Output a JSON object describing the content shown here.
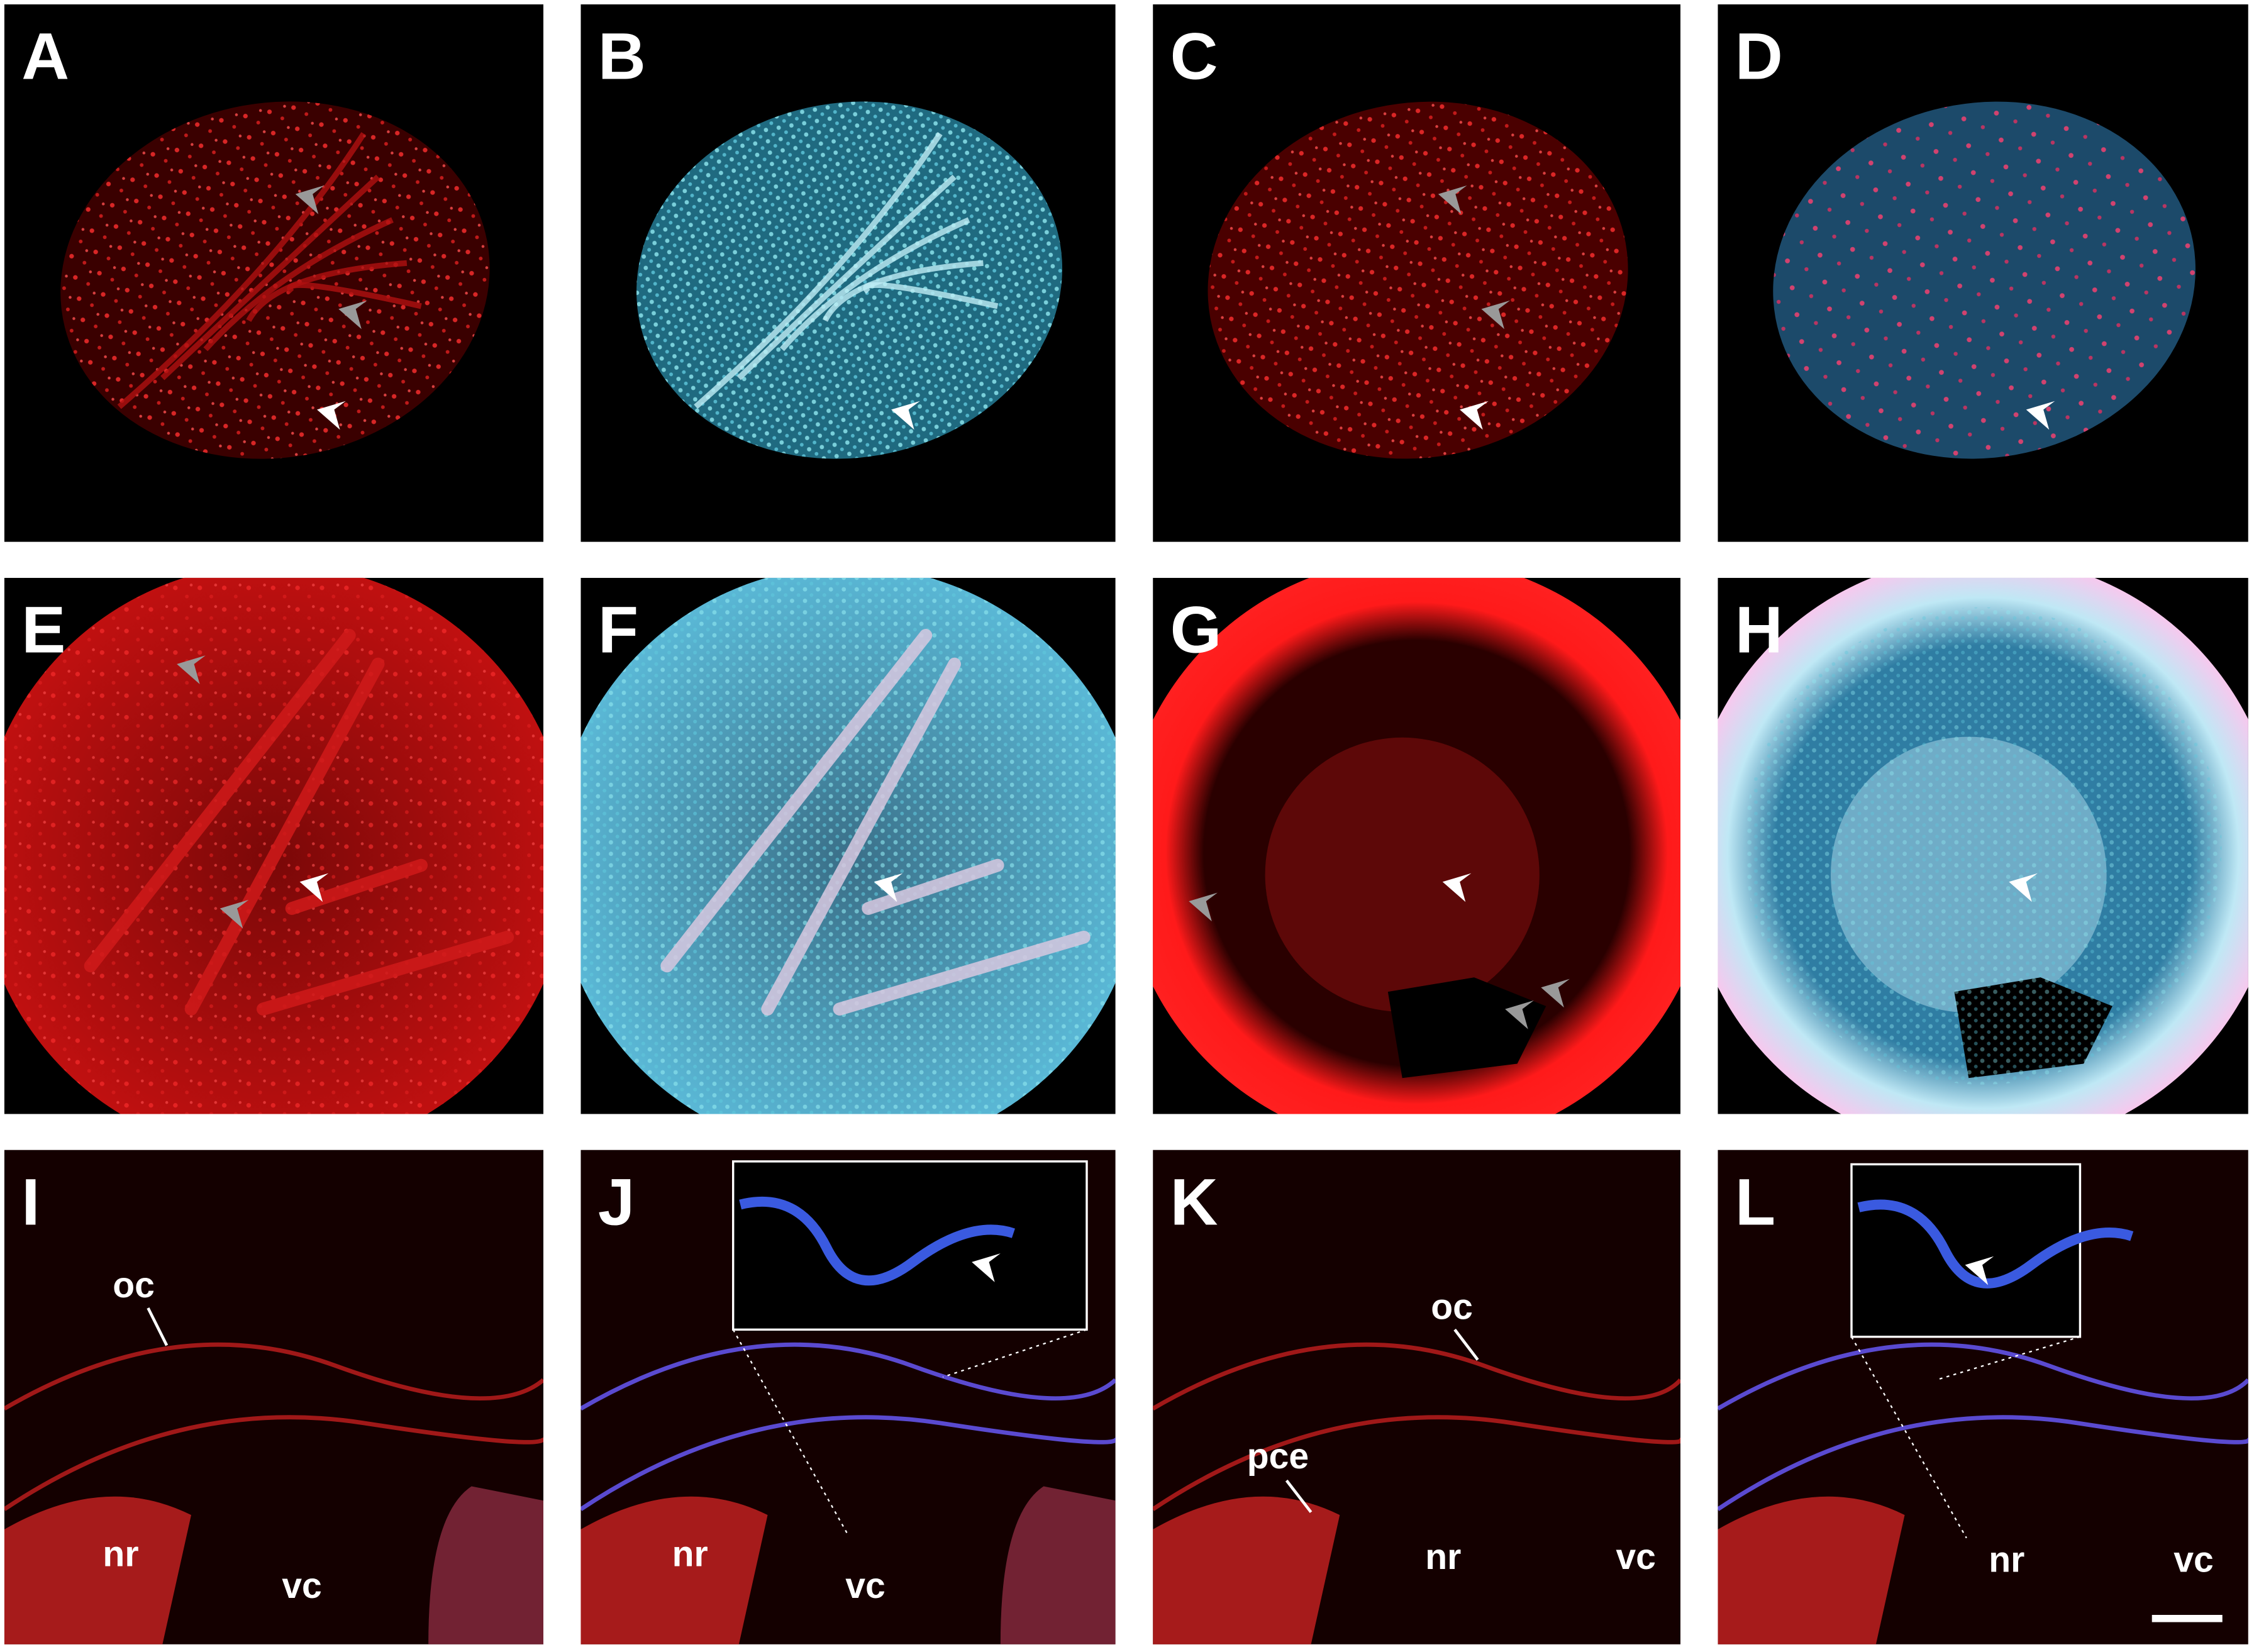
{
  "panels": [
    {
      "label": "A"
    },
    {
      "label": "B"
    },
    {
      "label": "C"
    },
    {
      "label": "D"
    },
    {
      "label": "E"
    },
    {
      "label": "F"
    },
    {
      "label": "G"
    },
    {
      "label": "H"
    },
    {
      "label": "I",
      "annotations": [
        "oc",
        "nr",
        "vc"
      ]
    },
    {
      "label": "J",
      "annotations": [
        "nr",
        "vc"
      ]
    },
    {
      "label": "K",
      "annotations": [
        "oc",
        "pce",
        "nr",
        "vc"
      ]
    },
    {
      "label": "L",
      "annotations": [
        "nr",
        "vc"
      ]
    }
  ]
}
